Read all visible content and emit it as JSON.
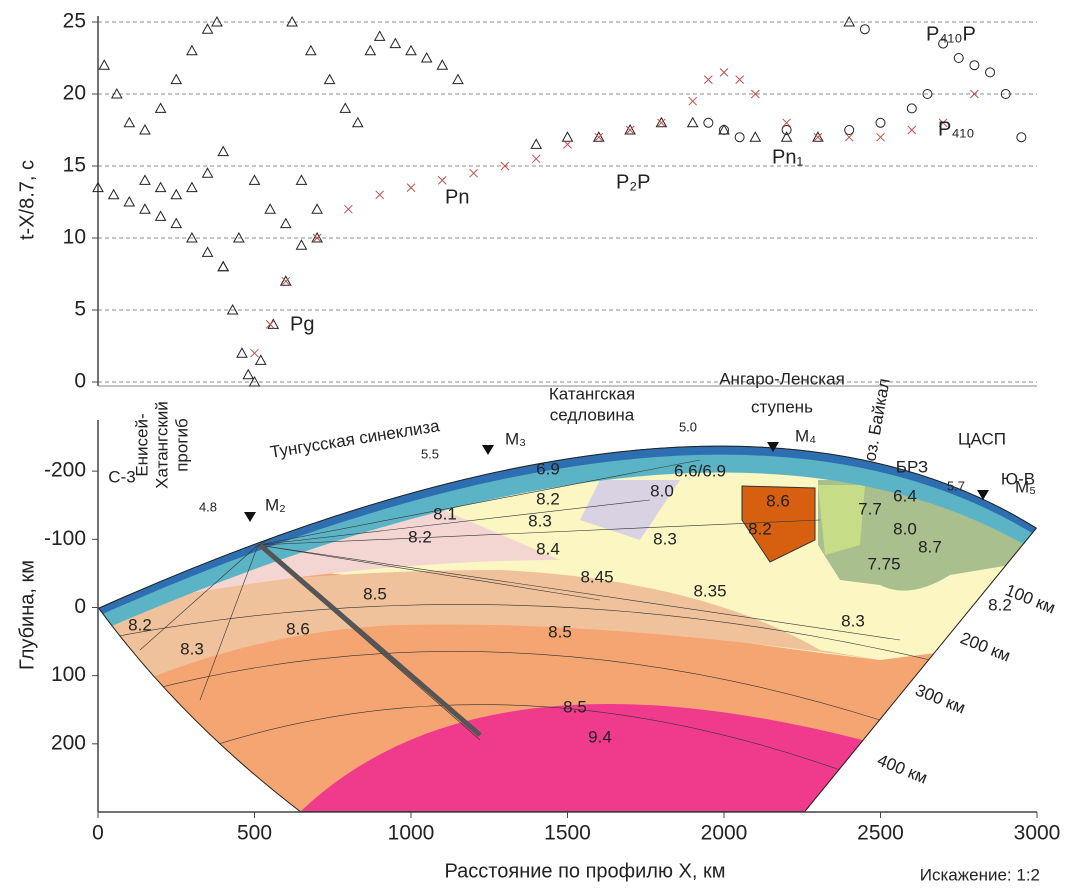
{
  "chart_data": [
    {
      "type": "scatter",
      "ylabel": "t-X/8.7, с",
      "xlim": [
        0,
        3000
      ],
      "ylim": [
        0,
        25
      ],
      "yticks": [
        0,
        5,
        10,
        15,
        20,
        25
      ],
      "grid": true,
      "series": [
        {
          "marker": "triangle",
          "color": "#222222",
          "x": [
            20,
            60,
            100,
            150,
            200,
            250,
            300,
            350,
            380
          ],
          "values": [
            22,
            20,
            18,
            17.5,
            19,
            21,
            23,
            24.5,
            25
          ]
        },
        {
          "marker": "triangle",
          "color": "#222222",
          "x": [
            620,
            680,
            740,
            790,
            830,
            870,
            900,
            950,
            1000,
            1050,
            1100,
            1150
          ],
          "values": [
            25,
            23,
            21,
            19,
            18,
            23,
            24,
            23.5,
            23,
            22.5,
            22,
            21
          ]
        },
        {
          "marker": "triangle",
          "color": "#222222",
          "x": [
            400,
            430,
            460,
            480,
            500,
            520,
            560,
            600,
            650,
            700
          ],
          "values": [
            8,
            5,
            2,
            0.5,
            0,
            1.5,
            4,
            7,
            9.5,
            10
          ]
        },
        {
          "marker": "triangle",
          "color": "#222222",
          "x": [
            0,
            50,
            100,
            150,
            200,
            250,
            300,
            350,
            400
          ],
          "values": [
            13.5,
            13,
            12.5,
            12,
            11.5,
            11,
            10,
            9,
            8
          ]
        },
        {
          "marker": "triangle",
          "color": "#222222",
          "x": [
            150,
            200,
            250,
            300,
            350,
            400,
            450,
            500,
            550,
            600,
            650,
            700
          ],
          "values": [
            14,
            13.5,
            13,
            13.5,
            14.5,
            16,
            10,
            14,
            12,
            11,
            14,
            12
          ]
        },
        {
          "marker": "triangle",
          "color": "#222222",
          "x": [
            1400,
            1500,
            1600,
            1700,
            1800,
            1900,
            2000,
            2100,
            2200,
            2300,
            2400
          ],
          "values": [
            16.5,
            17,
            17,
            17.5,
            18,
            18,
            17.5,
            17,
            17,
            17,
            25
          ]
        },
        {
          "marker": "circle",
          "color": "#222222",
          "x": [
            1950,
            2000,
            2050,
            2200,
            2400,
            2500,
            2600,
            2650,
            2700,
            2750,
            2800,
            2850,
            2900,
            2950,
            2450
          ],
          "values": [
            18,
            17.5,
            17,
            17.5,
            17.5,
            18,
            19,
            20,
            23.5,
            22.5,
            22,
            21.5,
            20,
            17,
            24.5
          ]
        },
        {
          "marker": "cross",
          "color": "#c0504d",
          "x": [
            500,
            550,
            600,
            700,
            800,
            900,
            1000,
            1100,
            1200,
            1300,
            1400,
            1500,
            1600,
            1700,
            1800,
            1900,
            1950,
            2000,
            2050,
            2100,
            2200,
            2300,
            2400,
            2500,
            2600,
            2700,
            2800
          ],
          "values": [
            2,
            4,
            7,
            10,
            12,
            13,
            13.5,
            14,
            14.5,
            15,
            15.5,
            16.5,
            17,
            17.5,
            18,
            19.5,
            21,
            21.5,
            21,
            20,
            18,
            17,
            17,
            17,
            17.5,
            18,
            20
          ]
        }
      ],
      "annotations": [
        "Pg",
        "Pn",
        "P₂P",
        "Pn₁",
        "P₄₁₀",
        "P₄₁₀P"
      ]
    },
    {
      "type": "section",
      "ylabel": "Глубина, км",
      "xlabel": "Расстояние по профилю X, км",
      "distortion": "Искажение: 1:2",
      "xlim": [
        0,
        3000
      ],
      "xticks": [
        0,
        500,
        1000,
        1500,
        2000,
        2500,
        3000
      ],
      "ylim": [
        -275,
        300
      ],
      "yticks": [
        -200,
        -100,
        0,
        100,
        200
      ],
      "y_inverted": true,
      "regions": [
        "С-3",
        "Енисей-",
        "Хатангский",
        "прогиб",
        "Тунгусская синеклиза",
        "Катангская",
        "седловина",
        "Ангаро-Ленская",
        "ступень",
        "оз. Байкал",
        "БРЗ",
        "ЦАСП",
        "Ю-В"
      ],
      "stations": [
        "M₂",
        "M₃",
        "M₄",
        "M₅"
      ],
      "surface_velocities": [
        "4.8",
        "5.5",
        "5.0",
        "5.7"
      ],
      "velocities": [
        "6.9",
        "6.6/6.9",
        "8.2",
        "8.1",
        "8.2",
        "8.0",
        "8.3",
        "8.4",
        "8.3",
        "8.45",
        "8.35",
        "8.5",
        "8.6",
        "8.2",
        "8.3",
        "8.5",
        "8.5",
        "9.4",
        "8.6",
        "8.2",
        "7.7",
        "8.0",
        "7.75",
        "6.4",
        "8.2",
        "8.3",
        "8.7"
      ],
      "depth_labels": [
        "100 км",
        "200 км",
        "300 км",
        "400 км"
      ]
    }
  ]
}
